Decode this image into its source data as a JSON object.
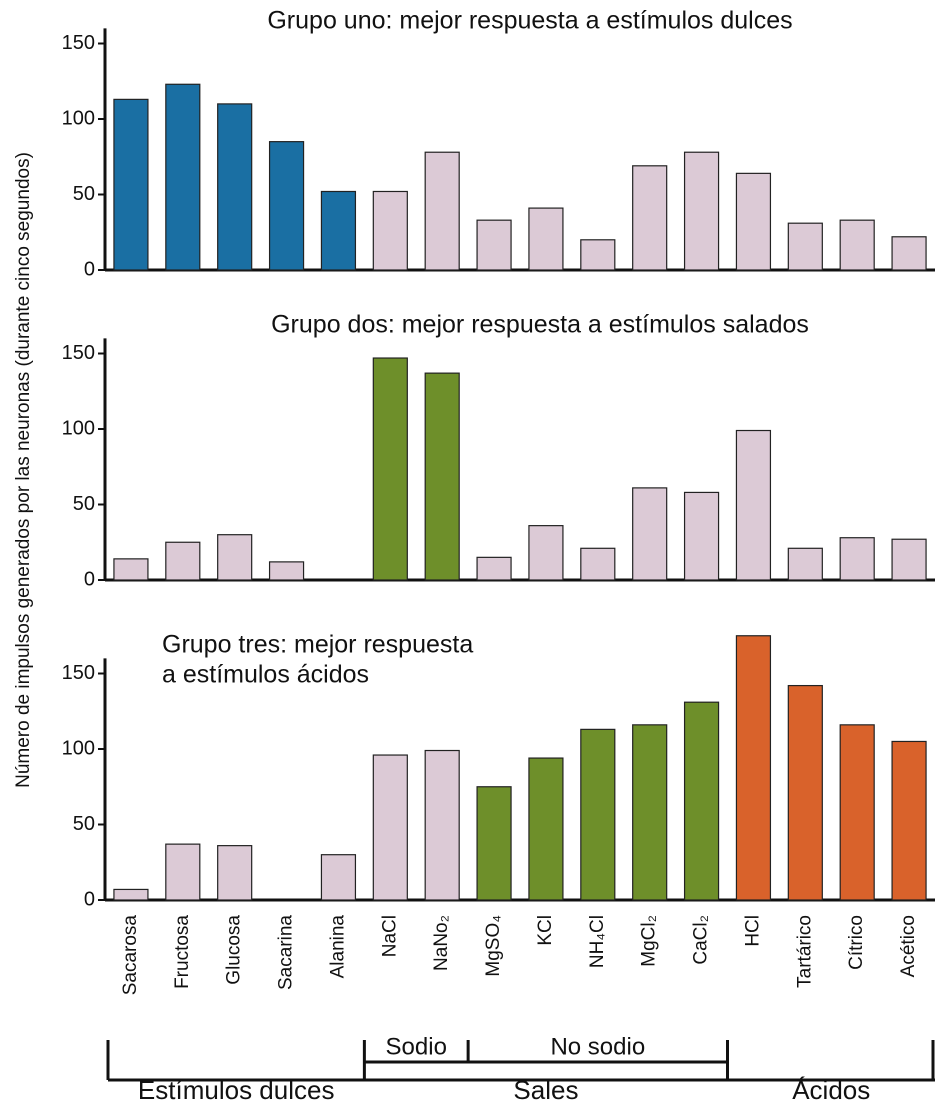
{
  "y_axis_label": "Número de impulsos generados por las neuronas (durante cinco segundos)",
  "categories": [
    "Sacarosa",
    "Fructosa",
    "Glucosa",
    "Sacarina",
    "Alanina",
    "NaCl",
    "NaNo₂",
    "MgSO₄",
    "KCl",
    "NH₄Cl",
    "MgCl₂",
    "CaCl₂",
    "HCl",
    "Tartárico",
    "Cítrico",
    "Acético"
  ],
  "groups": {
    "sub": [
      "Sodio",
      "No sodio"
    ],
    "main": [
      "Estímulos dulces",
      "Sales",
      "Ácidos"
    ]
  },
  "chart_data": [
    {
      "type": "bar",
      "title": [
        "Grupo uno: mejor respuesta a estímulos dulces"
      ],
      "values": [
        113,
        123,
        110,
        85,
        52,
        52,
        78,
        33,
        41,
        20,
        69,
        78,
        64,
        31,
        33,
        22
      ],
      "colors": [
        "#1a6fa3",
        "#1a6fa3",
        "#1a6fa3",
        "#1a6fa3",
        "#1a6fa3",
        "#dccad6",
        "#dccad6",
        "#dccad6",
        "#dccad6",
        "#dccad6",
        "#dccad6",
        "#dccad6",
        "#dccad6",
        "#dccad6",
        "#dccad6",
        "#dccad6"
      ],
      "ylim": [
        0,
        160
      ],
      "yticks": [
        0,
        50,
        100,
        150
      ]
    },
    {
      "type": "bar",
      "title": [
        "Grupo dos: mejor respuesta a estímulos salados"
      ],
      "values": [
        14,
        25,
        30,
        12,
        0,
        147,
        137,
        15,
        36,
        21,
        61,
        58,
        99,
        21,
        28,
        27
      ],
      "colors": [
        "#dccad6",
        "#dccad6",
        "#dccad6",
        "#dccad6",
        "#dccad6",
        "#6e8f2a",
        "#6e8f2a",
        "#dccad6",
        "#dccad6",
        "#dccad6",
        "#dccad6",
        "#dccad6",
        "#dccad6",
        "#dccad6",
        "#dccad6",
        "#dccad6"
      ],
      "ylim": [
        0,
        160
      ],
      "yticks": [
        0,
        50,
        100,
        150
      ]
    },
    {
      "type": "bar",
      "title": [
        "Grupo tres: mejor respuesta",
        "a estímulos ácidos"
      ],
      "values": [
        7,
        37,
        36,
        0,
        30,
        96,
        99,
        75,
        94,
        113,
        116,
        131,
        175,
        142,
        116,
        105
      ],
      "colors": [
        "#dccad6",
        "#dccad6",
        "#dccad6",
        "#dccad6",
        "#dccad6",
        "#dccad6",
        "#dccad6",
        "#6e8f2a",
        "#6e8f2a",
        "#6e8f2a",
        "#6e8f2a",
        "#6e8f2a",
        "#d9622b",
        "#d9622b",
        "#d9622b",
        "#d9622b"
      ],
      "ylim": [
        0,
        160
      ],
      "yticks": [
        0,
        50,
        100,
        150
      ]
    }
  ]
}
